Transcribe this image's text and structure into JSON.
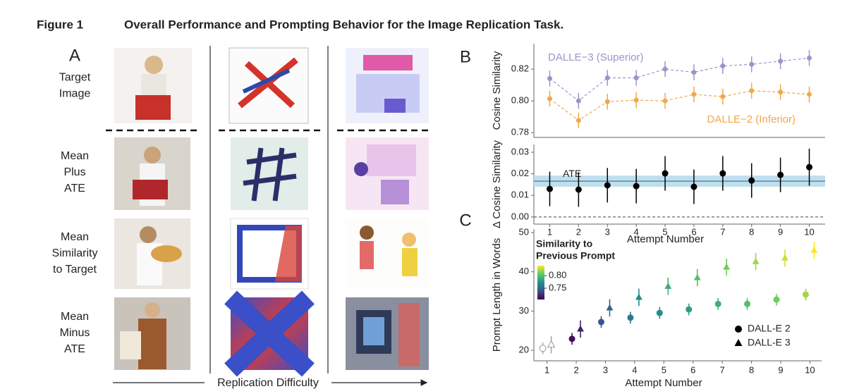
{
  "figure": {
    "label": "Figure 1",
    "title": "Overall Performance and Prompting Behavior for the Image Replication Task."
  },
  "panel_a": {
    "letter": "A",
    "rows": [
      [
        "Target",
        "Image"
      ],
      [
        "Mean",
        "Plus",
        "ATE"
      ],
      [
        "Mean",
        "Similarity",
        "to Target"
      ],
      [
        "Mean",
        "Minus",
        "ATE"
      ]
    ],
    "axis_label": "Replication Difficulty"
  },
  "panel_b": {
    "letter": "B"
  },
  "panel_c": {
    "letter": "C"
  },
  "chart_data": [
    {
      "type": "line",
      "ylabel": "Cosine Similarity",
      "x": [
        1,
        2,
        3,
        4,
        5,
        6,
        7,
        8,
        9,
        10
      ],
      "xlim": [
        0.45,
        10.55
      ],
      "ylim": [
        0.777,
        0.836
      ],
      "yticks": [
        {
          "value": 0.78,
          "label": "0.78"
        },
        {
          "value": 0.8,
          "label": "0.80"
        },
        {
          "value": 0.82,
          "label": "0.82"
        }
      ],
      "series": [
        {
          "name": "DALLE−3 (Superior)",
          "color": "#9d93cb",
          "values": [
            0.8141,
            0.8,
            0.8145,
            0.8145,
            0.82,
            0.818,
            0.822,
            0.823,
            0.825,
            0.827
          ],
          "errors": [
            0.005,
            0.005,
            0.005,
            0.005,
            0.005,
            0.005,
            0.005,
            0.005,
            0.005,
            0.005
          ]
        },
        {
          "name": "DALLE−2 (Inferior)",
          "color": "#f0a94a",
          "values": [
            0.8014,
            0.7877,
            0.7995,
            0.8005,
            0.8,
            0.8041,
            0.8027,
            0.8064,
            0.8055,
            0.8041
          ],
          "errors": [
            0.005,
            0.005,
            0.005,
            0.005,
            0.005,
            0.005,
            0.005,
            0.005,
            0.005,
            0.005
          ]
        }
      ]
    },
    {
      "type": "errorbar",
      "ylabel": "Δ Cosine Similarity",
      "xlabel": "Attempt Number",
      "x": [
        1,
        2,
        3,
        4,
        5,
        6,
        7,
        8,
        9,
        10
      ],
      "xlim": [
        0.45,
        10.55
      ],
      "xticks": [
        1,
        2,
        3,
        4,
        5,
        6,
        7,
        8,
        9,
        10
      ],
      "ylim": [
        -0.0033,
        0.0336
      ],
      "yticks": [
        {
          "value": 0,
          "label": "0.00"
        },
        {
          "value": 0.01,
          "label": "0.01"
        },
        {
          "value": 0.02,
          "label": "0.02"
        },
        {
          "value": 0.03,
          "label": "0.03"
        }
      ],
      "color": "#000000",
      "values": [
        0.013,
        0.0127,
        0.0147,
        0.0143,
        0.0202,
        0.014,
        0.0202,
        0.0169,
        0.0195,
        0.0231
      ],
      "errors": [
        0.008,
        0.008,
        0.008,
        0.008,
        0.008,
        0.008,
        0.008,
        0.008,
        0.008,
        0.0086
      ],
      "ate": {
        "label": "ATE",
        "value": 0.0166,
        "ci": [
          0.014,
          0.0192
        ],
        "color": "#3b5fc0",
        "band_color": "#bfe0ea"
      },
      "reference": 0
    },
    {
      "type": "scatter",
      "ylabel": "Prompt Length in Words",
      "xlabel": "Attempt Number",
      "x": [
        1,
        2,
        3,
        4,
        5,
        6,
        7,
        8,
        9,
        10
      ],
      "xlim": [
        0.55,
        10.4
      ],
      "xticks": [
        1,
        2,
        3,
        4,
        5,
        6,
        7,
        8,
        9,
        10
      ],
      "ylim": [
        17.3,
        50.9
      ],
      "yticks": [
        20,
        30,
        40,
        50
      ],
      "legend": "lower right",
      "series": [
        {
          "name": "DALL-E 2",
          "marker": "circle",
          "values": [
            20.5,
            22.9,
            27.2,
            28.3,
            29.5,
            30.4,
            31.8,
            31.8,
            32.9,
            34.2
          ],
          "errors": [
            1.5,
            1.5,
            1.5,
            1.5,
            1.5,
            1.5,
            1.5,
            1.5,
            1.5,
            1.5
          ],
          "similarity": [
            null,
            0.71,
            0.74,
            0.76,
            0.77,
            0.78,
            0.79,
            0.8,
            0.81,
            0.82
          ]
        },
        {
          "name": "DALL-E 3",
          "marker": "triangle",
          "values": [
            21.4,
            25.4,
            30.8,
            33.5,
            36.3,
            38.5,
            41.2,
            42.6,
            43.5,
            45.5
          ],
          "errors": [
            2.2,
            2.2,
            2.2,
            2.2,
            2.2,
            2.2,
            2.2,
            2.2,
            2.2,
            2.2
          ],
          "similarity": [
            null,
            0.72,
            0.75,
            0.77,
            0.79,
            0.8,
            0.81,
            0.82,
            0.83,
            0.84
          ]
        }
      ],
      "colorbar": {
        "title": [
          "Similarity to",
          "Previous Prompt"
        ],
        "range": [
          0.705,
          0.84
        ],
        "ticks": [
          {
            "value": 0.8,
            "label": "0.80"
          },
          0.75
        ]
      }
    }
  ]
}
